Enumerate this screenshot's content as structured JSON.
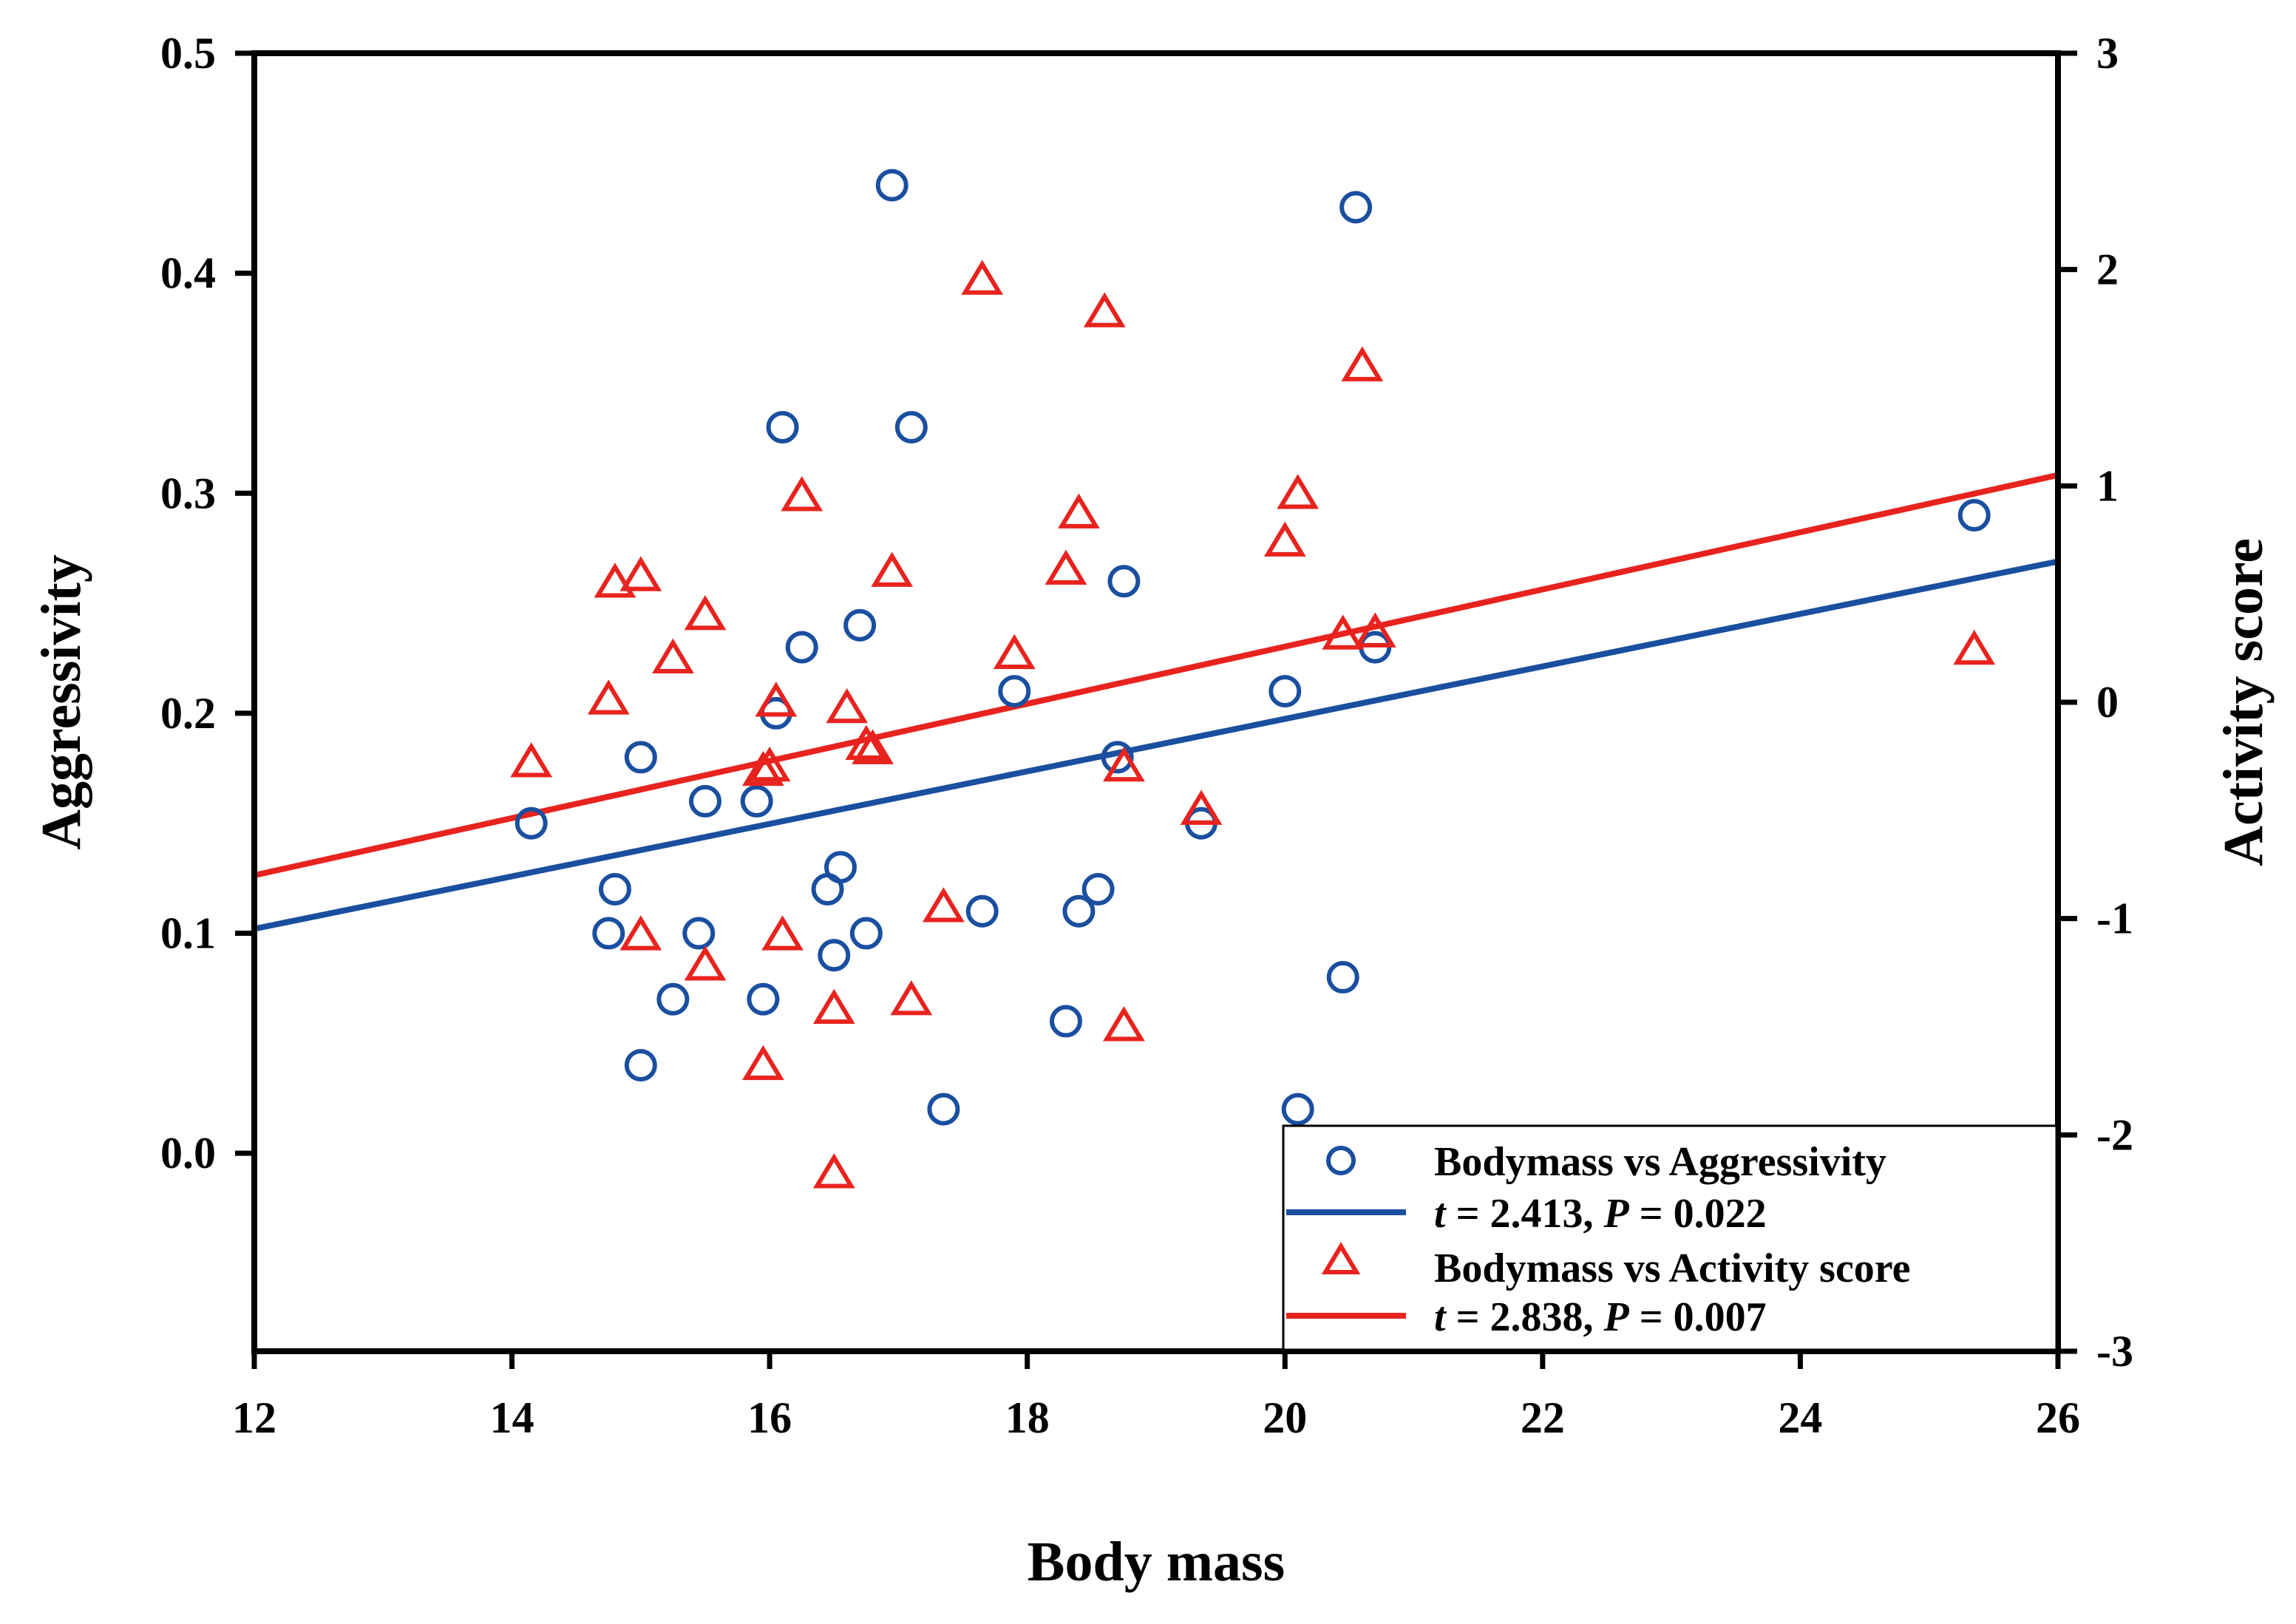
{
  "chart_data": {
    "type": "scatter",
    "x": {
      "label": "Body mass",
      "lim": [
        12,
        26
      ],
      "ticks": [
        12,
        14,
        16,
        18,
        20,
        22,
        24,
        26
      ]
    },
    "y_left": {
      "label": "Aggressivity",
      "lim": [
        -0.09,
        0.5
      ],
      "ticks": [
        0.0,
        0.1,
        0.2,
        0.3,
        0.4,
        0.5
      ],
      "tick_labels": [
        "0.0",
        "0.1",
        "0.2",
        "0.3",
        "0.4",
        "0.5"
      ]
    },
    "y_right": {
      "label": "Activity score",
      "lim": [
        -3,
        3
      ],
      "ticks": [
        -3,
        -2,
        -1,
        0,
        1,
        2,
        3
      ],
      "tick_labels": [
        "-3",
        "-2",
        "-1",
        "0",
        "1",
        "2",
        "3"
      ]
    },
    "series": [
      {
        "name": "Bodymass vs Aggressivity",
        "axis": "left",
        "marker": "circle",
        "color": "#1a4fa0",
        "points": [
          [
            14.15,
            0.15
          ],
          [
            14.75,
            0.1
          ],
          [
            14.8,
            0.12
          ],
          [
            15.0,
            0.18
          ],
          [
            15.0,
            0.04
          ],
          [
            15.25,
            0.07
          ],
          [
            15.45,
            0.1
          ],
          [
            15.5,
            0.16
          ],
          [
            15.9,
            0.16
          ],
          [
            15.95,
            0.07
          ],
          [
            16.05,
            0.2
          ],
          [
            16.1,
            0.33
          ],
          [
            16.25,
            0.23
          ],
          [
            16.45,
            0.12
          ],
          [
            16.5,
            0.09
          ],
          [
            16.55,
            0.13
          ],
          [
            16.7,
            0.24
          ],
          [
            16.75,
            0.1
          ],
          [
            16.95,
            0.44
          ],
          [
            17.1,
            0.33
          ],
          [
            17.35,
            0.02
          ],
          [
            17.65,
            0.11
          ],
          [
            17.9,
            0.21
          ],
          [
            18.3,
            0.06
          ],
          [
            18.4,
            0.11
          ],
          [
            18.55,
            0.12
          ],
          [
            18.7,
            0.18
          ],
          [
            18.75,
            0.26
          ],
          [
            19.35,
            0.15
          ],
          [
            20.0,
            0.21
          ],
          [
            20.1,
            0.02
          ],
          [
            20.45,
            0.08
          ],
          [
            20.55,
            0.43
          ],
          [
            20.7,
            0.23
          ],
          [
            25.35,
            0.29
          ]
        ],
        "fit": {
          "x": [
            12,
            26
          ],
          "y": [
            0.102,
            0.269
          ]
        },
        "stat": {
          "t_label": "t",
          "t_value": " = 2.413, ",
          "p_label": "P",
          "p_value": " = 0.022"
        }
      },
      {
        "name": "Bodymass vs Activity score",
        "axis": "right",
        "marker": "triangle",
        "color": "#e8231e",
        "points": [
          [
            14.15,
            -0.28
          ],
          [
            14.75,
            0.01
          ],
          [
            14.8,
            0.55
          ],
          [
            15.0,
            0.58
          ],
          [
            15.0,
            -1.08
          ],
          [
            15.25,
            0.2
          ],
          [
            15.5,
            0.4
          ],
          [
            15.5,
            -1.22
          ],
          [
            15.95,
            -1.68
          ],
          [
            15.95,
            -0.32
          ],
          [
            16.0,
            -0.3
          ],
          [
            16.05,
            0.0
          ],
          [
            16.1,
            -1.08
          ],
          [
            16.25,
            0.95
          ],
          [
            16.5,
            -2.18
          ],
          [
            16.5,
            -1.42
          ],
          [
            16.6,
            -0.03
          ],
          [
            16.75,
            -0.2
          ],
          [
            16.8,
            -0.22
          ],
          [
            16.95,
            0.6
          ],
          [
            17.1,
            -1.38
          ],
          [
            17.35,
            -0.95
          ],
          [
            17.65,
            1.95
          ],
          [
            17.9,
            0.22
          ],
          [
            18.3,
            0.61
          ],
          [
            18.4,
            0.87
          ],
          [
            18.6,
            1.8
          ],
          [
            18.75,
            -0.3
          ],
          [
            18.75,
            -1.5
          ],
          [
            19.35,
            -0.5
          ],
          [
            20.0,
            0.74
          ],
          [
            20.1,
            0.96
          ],
          [
            20.45,
            0.31
          ],
          [
            20.6,
            1.55
          ],
          [
            20.7,
            0.32
          ],
          [
            25.35,
            0.24
          ]
        ],
        "fit": {
          "x": [
            12,
            26
          ],
          "y": [
            -0.8,
            1.05
          ]
        },
        "stat": {
          "t_label": "t",
          "t_value": " = 2.838, ",
          "p_label": "P",
          "p_value": " = 0.007"
        }
      }
    ],
    "legend": {
      "position": "bottom-right"
    }
  }
}
